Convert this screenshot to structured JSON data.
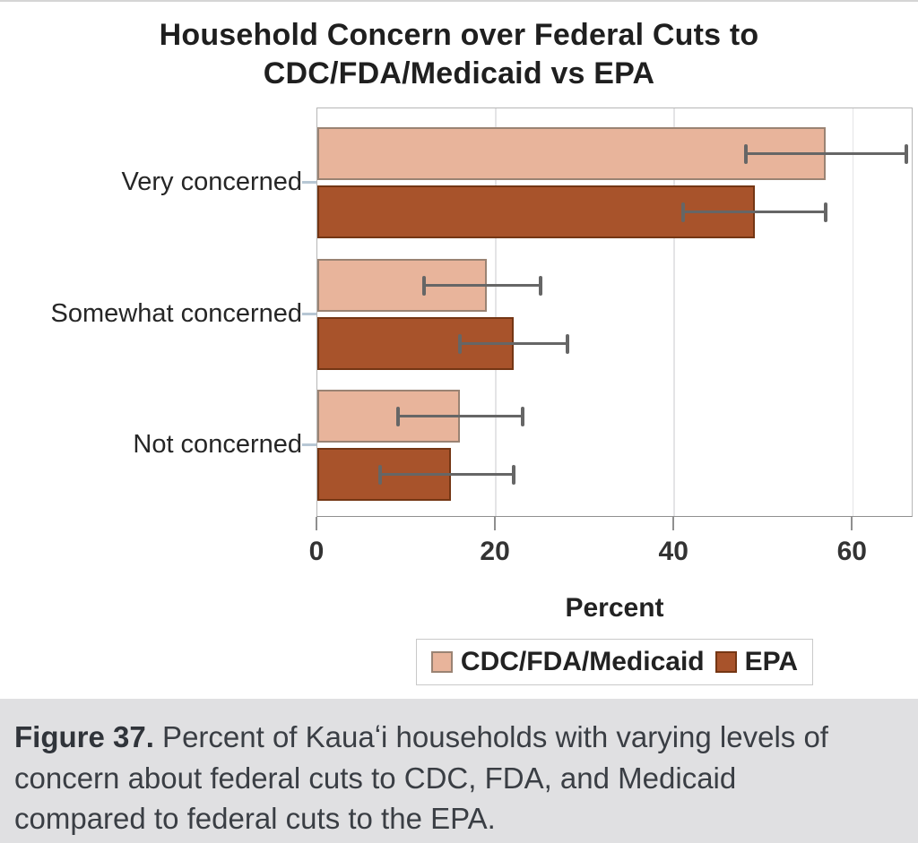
{
  "header": {
    "title_line1": "Household Concern over Federal Cuts to",
    "title_line2": "CDC/FDA/Medicaid vs EPA"
  },
  "chart_data": {
    "type": "bar",
    "orientation": "horizontal",
    "title": "Household Concern over Federal Cuts to CDC/FDA/Medicaid vs EPA",
    "categories": [
      "Very concerned",
      "Somewhat concerned",
      "Not concerned"
    ],
    "series": [
      {
        "name": "CDC/FDA/Medicaid",
        "color": "#e8b49b",
        "border_color": "#9a8373",
        "values": [
          57,
          19,
          16
        ],
        "ci_low": [
          48,
          12,
          9
        ],
        "ci_high": [
          66,
          25,
          23
        ]
      },
      {
        "name": "EPA",
        "color": "#a8532b",
        "border_color": "#743614",
        "values": [
          49,
          22,
          15
        ],
        "ci_low": [
          41,
          16,
          7
        ],
        "ci_high": [
          57,
          28,
          22
        ]
      }
    ],
    "xlabel": "Percent",
    "xticks": [
      0,
      20,
      40,
      60
    ],
    "xlim": [
      0,
      66.8
    ],
    "grid": true,
    "error_bars": true,
    "legend_position": "bottom",
    "error_bar_color": "#666666",
    "gridline_color": "#e4e4e6"
  },
  "caption": {
    "label": "Figure 37.",
    "text": " Percent of Kauaʻi households with varying levels of concern about federal cuts to CDC, FDA, and Medicaid compared to federal cuts to the EPA."
  }
}
